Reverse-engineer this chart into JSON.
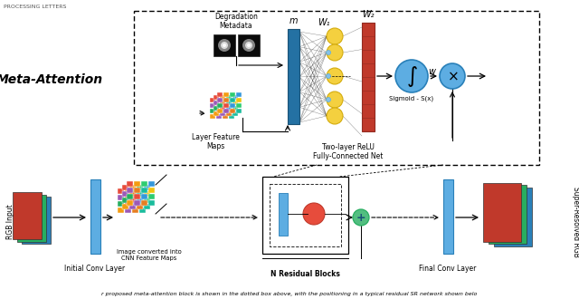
{
  "bg_color": "#ffffff",
  "caption": "r proposed meta-attention block is shown in the dotted box above, with the positioning in a typical residual SR network shown belo",
  "meta_attention_label": "Meta-Attention",
  "rgb_input_label": "RGB Input",
  "super_resolved_label": "Super-Resolved RGB",
  "initial_conv_label": "Initial Conv Layer",
  "n_residual_label": "N Residual Blocks",
  "final_conv_label": "Final Conv Layer",
  "image_converted_label": "Image converted into\nCNN Feature Maps",
  "degradation_label": "Degradation\nMetadata",
  "layer_feature_label": "Layer Feature\nMaps",
  "two_layer_label": "Two-layer ReLU\nFully-Connected Net",
  "sigmoid_label": "Sigmoid - S(x)",
  "w1_label": "W₁",
  "w2_label": "W₂",
  "m_label": "m",
  "w_label": "w",
  "header": "PROCESSING LETTERS"
}
